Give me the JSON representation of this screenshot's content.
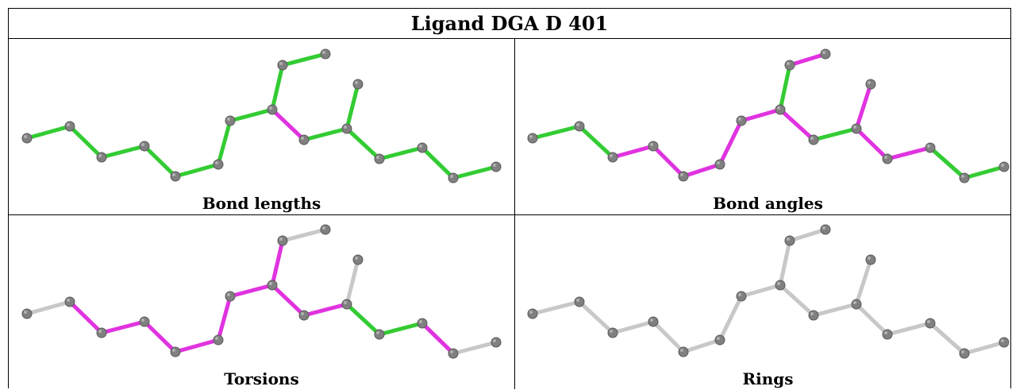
{
  "title": "Ligand DGA D 401",
  "colors": {
    "green": "#33cc33",
    "magenta": "#e033e0",
    "grey": "#c8c8c8",
    "atom": "#808080"
  },
  "panels": [
    {
      "caption": "Bond lengths",
      "bond_colors": [
        "green",
        "green",
        "green",
        "green",
        "green",
        "green",
        "green",
        "green",
        "green",
        "magenta",
        "green",
        "green",
        "green",
        "green",
        "green",
        "green",
        "green"
      ]
    },
    {
      "caption": "Bond angles",
      "bond_colors": [
        "green",
        "green",
        "magenta",
        "magenta",
        "magenta",
        "magenta",
        "magenta",
        "green",
        "magenta",
        "magenta",
        "green",
        "magenta",
        "magenta",
        "magenta",
        "green",
        "green",
        "green"
      ]
    },
    {
      "caption": "Torsions",
      "bond_colors": [
        "grey",
        "magenta",
        "magenta",
        "magenta",
        "magenta",
        "magenta",
        "magenta",
        "magenta",
        "grey",
        "magenta",
        "magenta",
        "grey",
        "green",
        "green",
        "magenta",
        "grey",
        "magenta"
      ]
    },
    {
      "caption": "Rings",
      "bond_colors": [
        "grey",
        "grey",
        "grey",
        "grey",
        "grey",
        "grey",
        "grey",
        "grey",
        "grey",
        "grey",
        "grey",
        "grey",
        "grey",
        "grey",
        "grey",
        "grey",
        "grey"
      ]
    }
  ]
}
